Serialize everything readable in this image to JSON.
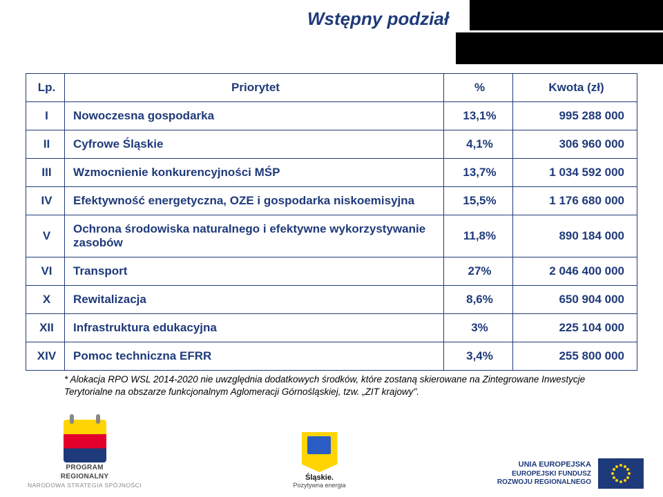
{
  "title": "Wstępny podział",
  "table": {
    "headers": {
      "lp": "Lp.",
      "name": "Priorytet",
      "pct": "%",
      "amt": "Kwota (zł)"
    },
    "rows": [
      {
        "lp": "I",
        "name": "Nowoczesna gospodarka",
        "pct": "13,1%",
        "amt": "995 288 000"
      },
      {
        "lp": "II",
        "name": "Cyfrowe Śląskie",
        "pct": "4,1%",
        "amt": "306 960 000"
      },
      {
        "lp": "III",
        "name": "Wzmocnienie konkurencyjności MŚP",
        "pct": "13,7%",
        "amt": "1 034 592 000"
      },
      {
        "lp": "IV",
        "name": "Efektywność energetyczna, OZE i gospodarka niskoemisyjna",
        "pct": "15,5%",
        "amt": "1 176 680 000"
      },
      {
        "lp": "V",
        "name": "   Ochrona środowiska naturalnego i efektywne wykorzystywanie zasobów",
        "pct": "11,8%",
        "amt": "890 184 000"
      },
      {
        "lp": "VI",
        "name": "Transport",
        "pct": "27%",
        "amt": "2 046 400 000"
      },
      {
        "lp": "X",
        "name": "Rewitalizacja",
        "pct": "8,6%",
        "amt": "650 904 000"
      },
      {
        "lp": "XII",
        "name": "Infrastruktura edukacyjna",
        "pct": "3%",
        "amt": "225 104 000"
      },
      {
        "lp": "XIV",
        "name": "Pomoc techniczna EFRR",
        "pct": "3,4%",
        "amt": "255 800 000"
      }
    ]
  },
  "footnote": "* Alokacja RPO WSL 2014-2020 nie uwzględnia dodatkowych środków, które zostaną skierowane na Zintegrowane Inwestycje Terytorialne na obszarze funkcjonalnym  Aglomeracji Górnośląskiej, tzw. „ZIT krajowy\".",
  "logos": {
    "left": {
      "line1": "PROGRAM",
      "line2": "REGIONALNY",
      "line3": "NARODOWA STRATEGIA SPÓJNOŚCI"
    },
    "mid": {
      "line1": "Śląskie.",
      "line2": "Pozytywna energia"
    },
    "right": {
      "line1": "UNIA EUROPEJSKA",
      "line2": "EUROPEJSKI FUNDUSZ",
      "line3": "ROZWOJU REGIONALNEGO"
    }
  },
  "colors": {
    "brand": "#1f3a7a",
    "yellow": "#ffd400",
    "red": "#e4002b",
    "bg": "#ffffff",
    "black": "#000000"
  }
}
